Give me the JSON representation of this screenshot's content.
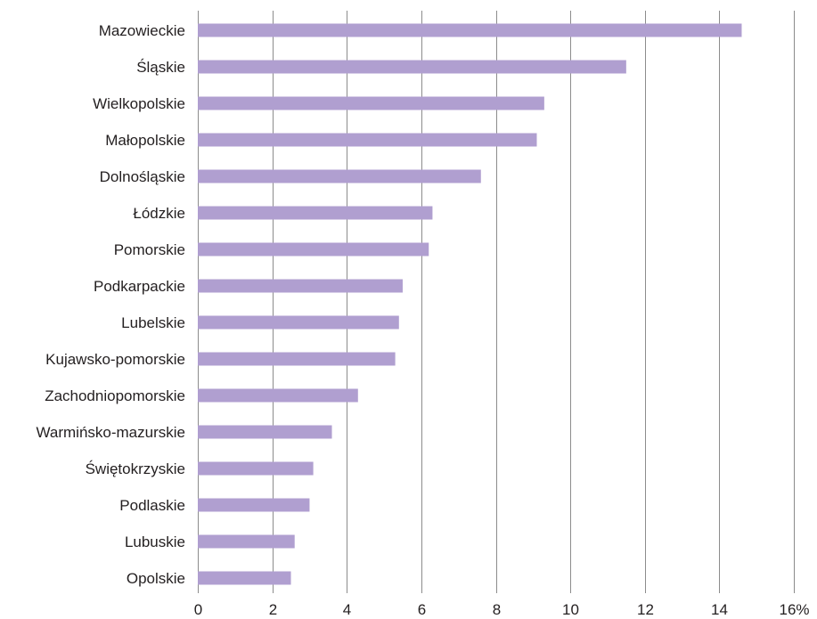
{
  "chart_data": {
    "type": "bar",
    "orientation": "horizontal",
    "categories": [
      "Mazowieckie",
      "Śląskie",
      "Wielkopolskie",
      "Małopolskie",
      "Dolnośląskie",
      "Łódzkie",
      "Pomorskie",
      "Podkarpackie",
      "Lubelskie",
      "Kujawsko-pomorskie",
      "Zachodniopomorskie",
      "Warmińsko-mazurskie",
      "Świętokrzyskie",
      "Podlaskie",
      "Lubuskie",
      "Opolskie"
    ],
    "values": [
      14.6,
      11.5,
      9.3,
      9.1,
      7.6,
      6.3,
      6.2,
      5.5,
      5.4,
      5.3,
      4.3,
      3.6,
      3.1,
      3.0,
      2.6,
      2.5
    ],
    "xlim": [
      0,
      16
    ],
    "ticks": [
      0,
      2,
      4,
      6,
      8,
      10,
      12,
      14,
      16
    ],
    "tick_labels": [
      "0",
      "2",
      "4",
      "6",
      "8",
      "10",
      "12",
      "14",
      "16%"
    ],
    "grid": true,
    "bar_color": "#b09fd0",
    "grid_color": "#8c8c8c",
    "text_color": "#231f20"
  }
}
